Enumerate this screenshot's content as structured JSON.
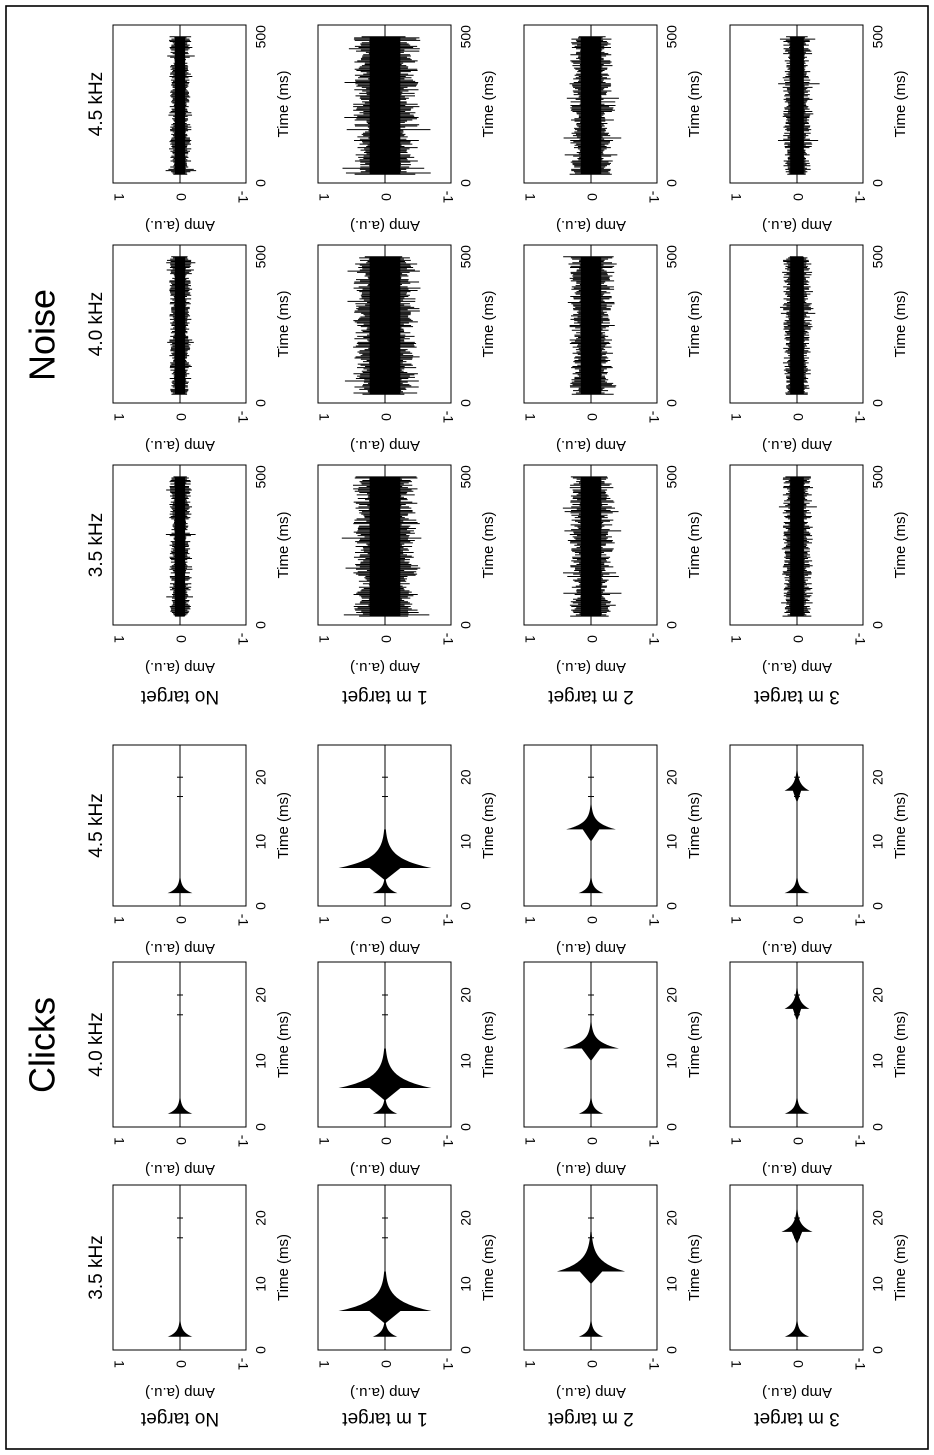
{
  "figure": {
    "groups": [
      {
        "key": "clicks",
        "title": "Clicks",
        "signal": "click",
        "xticks": [
          "0",
          "10",
          "20"
        ],
        "xlim": [
          0,
          25
        ],
        "xlabel": "Time (ms)"
      },
      {
        "key": "noise",
        "title": "Noise",
        "signal": "noise",
        "xticks": [
          "0",
          "500"
        ],
        "xlim": [
          0,
          540
        ],
        "xlabel": "Time (ms)"
      }
    ],
    "frequencies": [
      "3.5 kHz",
      "4.0 kHz",
      "4.5 kHz"
    ],
    "conditions": [
      "No target",
      "1 m target",
      "2 m target",
      "3 m target"
    ],
    "ylabel": "Amp (a.u.)",
    "yticks": [
      "1",
      "0",
      "-1"
    ],
    "ylim": [
      -1,
      1
    ]
  },
  "chart_data": [
    {
      "type": "line",
      "group": "Clicks",
      "description": "Echo waveforms for click stimuli at 3.5, 4.0, 4.5 kHz (columns) and four target conditions (rows)",
      "xlabel": "Time (ms)",
      "ylabel": "Amp (a.u.)",
      "xlim": [
        0,
        25
      ],
      "ylim": [
        -1,
        1
      ],
      "columns": [
        "3.5 kHz",
        "4.0 kHz",
        "4.5 kHz"
      ],
      "rows": [
        {
          "condition": "No target",
          "emission_ms": 2,
          "emission_amp": 0.2,
          "echo_ms": null,
          "echo_amp": [
            0,
            0,
            0
          ]
        },
        {
          "condition": "1 m target",
          "emission_ms": 2,
          "emission_amp": 0.2,
          "echo_ms": 6,
          "echo_amp": [
            0.75,
            0.75,
            0.75
          ]
        },
        {
          "condition": "2 m target",
          "emission_ms": 2,
          "emission_amp": 0.2,
          "echo_ms": 12,
          "echo_amp": [
            0.55,
            0.45,
            0.4
          ]
        },
        {
          "condition": "3 m target",
          "emission_ms": 2,
          "emission_amp": 0.2,
          "echo_ms": 18,
          "echo_amp": [
            0.25,
            0.2,
            0.2
          ]
        }
      ]
    },
    {
      "type": "line",
      "group": "Noise",
      "description": "Echo waveforms for noise stimuli at 3.5, 4.0, 4.5 kHz (columns) and four target conditions (rows)",
      "xlabel": "Time (ms)",
      "ylabel": "Amp (a.u.)",
      "xlim": [
        0,
        540
      ],
      "ylim": [
        -1,
        1
      ],
      "columns": [
        "3.5 kHz",
        "4.0 kHz",
        "4.5 kHz"
      ],
      "rows": [
        {
          "condition": "No target",
          "duration_ms": [
            30,
            500
          ],
          "noise_amp": [
            0.15,
            0.15,
            0.15
          ]
        },
        {
          "condition": "1 m target",
          "duration_ms": [
            30,
            500
          ],
          "noise_amp": [
            0.45,
            0.45,
            0.45
          ]
        },
        {
          "condition": "2 m target",
          "duration_ms": [
            30,
            500
          ],
          "noise_amp": [
            0.3,
            0.3,
            0.3
          ]
        },
        {
          "condition": "3 m target",
          "duration_ms": [
            30,
            500
          ],
          "noise_amp": [
            0.2,
            0.2,
            0.2
          ]
        }
      ]
    }
  ]
}
